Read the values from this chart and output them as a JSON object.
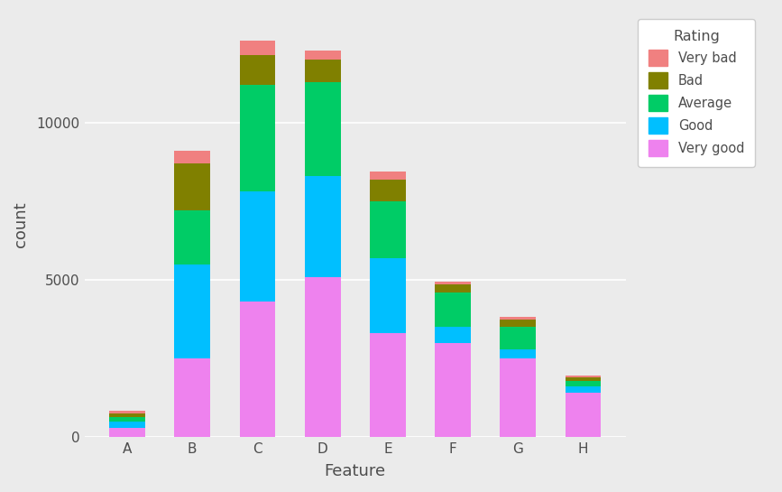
{
  "categories": [
    "A",
    "B",
    "C",
    "D",
    "E",
    "F",
    "G",
    "H"
  ],
  "stack_order": [
    "Very good",
    "Good",
    "Average",
    "Bad",
    "Very bad"
  ],
  "legend_order": [
    "Very bad",
    "Bad",
    "Average",
    "Good",
    "Very good"
  ],
  "colors": {
    "Very good": "#EE82EE",
    "Good": "#00BFFF",
    "Average": "#00CC66",
    "Bad": "#808000",
    "Very bad": "#F08080"
  },
  "values": {
    "Very good": [
      300,
      2500,
      4300,
      5100,
      3300,
      3000,
      2500,
      1400
    ],
    "Good": [
      200,
      3000,
      3500,
      3200,
      2400,
      500,
      300,
      200
    ],
    "Average": [
      150,
      1700,
      3400,
      3000,
      1800,
      1100,
      700,
      200
    ],
    "Bad": [
      100,
      1500,
      950,
      700,
      700,
      250,
      250,
      100
    ],
    "Very bad": [
      80,
      400,
      450,
      300,
      250,
      100,
      80,
      50
    ]
  },
  "xlabel": "Feature",
  "ylabel": "count",
  "ylim": [
    0,
    13500
  ],
  "yticks": [
    0,
    5000,
    10000
  ],
  "ytick_labels": [
    "0",
    "5000",
    "10000"
  ],
  "background_color": "#EBEBEB",
  "plot_bg_color": "#EBEBEB",
  "grid_color": "#FFFFFF",
  "legend_title": "Rating",
  "text_color": "#4D4D4D"
}
